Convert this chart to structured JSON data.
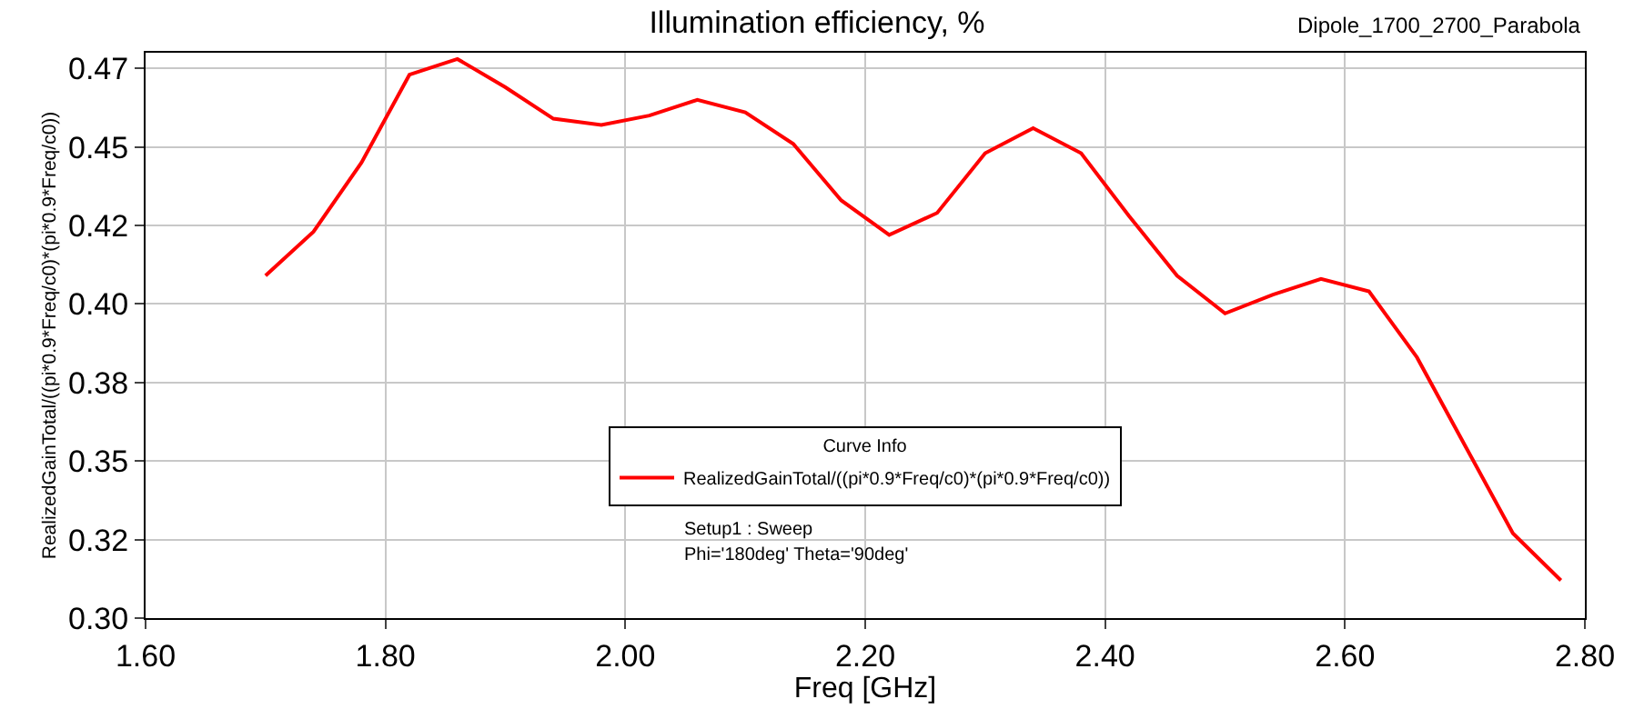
{
  "chart_data": {
    "type": "line",
    "title": "Illumination efficiency, %",
    "xlabel": "Freq [GHz]",
    "ylabel": "RealizedGainTotal/((pi*0.9*Freq/c0)*(pi*0.9*Freq/c0))",
    "legend_title": "Curve Info",
    "annotations": [
      "Dipole_1700_2700_Parabola",
      "Setup1 : Sweep",
      "Phi='180deg' Theta='90deg'"
    ],
    "x": [
      1.7,
      1.74,
      1.78,
      1.82,
      1.86,
      1.9,
      1.94,
      1.98,
      2.02,
      2.06,
      2.1,
      2.14,
      2.18,
      2.22,
      2.26,
      2.3,
      2.34,
      2.38,
      2.42,
      2.46,
      2.5,
      2.54,
      2.58,
      2.62,
      2.66,
      2.7,
      2.74,
      2.78
    ],
    "series": [
      {
        "name": "RealizedGainTotal/((pi*0.9*Freq/c0)*(pi*0.9*Freq/c0))",
        "color": "#ff0000",
        "values": [
          0.409,
          0.423,
          0.445,
          0.473,
          0.478,
          0.469,
          0.459,
          0.457,
          0.46,
          0.465,
          0.461,
          0.451,
          0.433,
          0.422,
          0.429,
          0.448,
          0.456,
          0.448,
          0.428,
          0.409,
          0.397,
          0.403,
          0.408,
          0.404,
          0.383,
          0.355,
          0.327,
          0.312
        ]
      }
    ],
    "xlim": [
      1.6,
      2.8
    ],
    "xticks": [
      {
        "value": 1.6,
        "label": "1.60"
      },
      {
        "value": 1.8,
        "label": "1.80"
      },
      {
        "value": 2.0,
        "label": "2.00"
      },
      {
        "value": 2.2,
        "label": "2.20"
      },
      {
        "value": 2.4,
        "label": "2.40"
      },
      {
        "value": 2.6,
        "label": "2.60"
      },
      {
        "value": 2.8,
        "label": "2.80"
      }
    ],
    "ylim": [
      0.3,
      0.48
    ],
    "yticks": [
      {
        "value": 0.3,
        "label": "0.30"
      },
      {
        "value": 0.325,
        "label": "0.32"
      },
      {
        "value": 0.35,
        "label": "0.35"
      },
      {
        "value": 0.375,
        "label": "0.38"
      },
      {
        "value": 0.4,
        "label": "0.40"
      },
      {
        "value": 0.425,
        "label": "0.42"
      },
      {
        "value": 0.45,
        "label": "0.45"
      },
      {
        "value": 0.475,
        "label": "0.47"
      }
    ],
    "grid": true,
    "legend": "bottom",
    "marker": "none",
    "line_style": "solid"
  }
}
